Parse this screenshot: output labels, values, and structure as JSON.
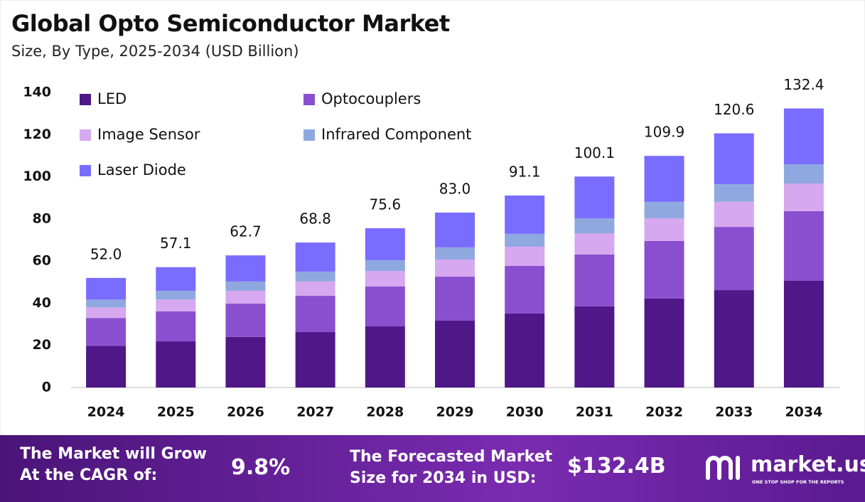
{
  "chart_data": {
    "type": "stacked_bar",
    "title": "Global Opto Semiconductor Market",
    "subtitle": "Size, By Type, 2025-2034 (USD Billion)",
    "categories": [
      "2024",
      "2025",
      "2026",
      "2027",
      "2028",
      "2029",
      "2030",
      "2031",
      "2032",
      "2033",
      "2034"
    ],
    "series": [
      {
        "name": "LED",
        "color": "#4f1787",
        "values": [
          19.8,
          21.9,
          24.0,
          26.3,
          29.0,
          31.7,
          35.1,
          38.5,
          42.2,
          46.2,
          50.6
        ]
      },
      {
        "name": "Optocouplers",
        "color": "#8a4fcf",
        "values": [
          13.2,
          14.2,
          15.8,
          17.2,
          18.9,
          20.9,
          22.6,
          24.6,
          27.3,
          30.0,
          33.1
        ]
      },
      {
        "name": "Image Sensor",
        "color": "#d6a8ef",
        "values": [
          5.0,
          5.7,
          6.1,
          6.8,
          7.4,
          8.1,
          9.1,
          10.1,
          10.8,
          11.9,
          13.1
        ]
      },
      {
        "name": "Infrared Component",
        "color": "#90a8e0",
        "values": [
          3.7,
          4.1,
          4.4,
          4.7,
          5.1,
          5.8,
          6.1,
          7.1,
          7.8,
          8.4,
          9.1
        ]
      },
      {
        "name": "Laser Diode",
        "color": "#7a6cff",
        "values": [
          10.3,
          11.2,
          12.4,
          13.8,
          15.2,
          16.5,
          18.2,
          19.8,
          21.8,
          24.1,
          26.5
        ]
      }
    ],
    "totals": {
      "values": [
        52.0,
        57.1,
        62.7,
        68.8,
        75.6,
        83.0,
        91.1,
        100.1,
        109.9,
        120.6,
        132.4
      ],
      "value_labels": [
        "52.0",
        "57.1",
        "62.7",
        "68.8",
        "75.6",
        "83.0",
        "91.1",
        "100.1",
        "109.9",
        "120.6",
        "132.4"
      ]
    },
    "ylim": [
      0,
      140
    ],
    "yticks": [
      0,
      20,
      40,
      60,
      80,
      100,
      120,
      140
    ],
    "grid": false
  },
  "footer": {
    "cagr_text": "The Market will Grow At the CAGR of:",
    "cagr": "9.8%",
    "forecast_text": "The Forecasted Market Size for 2034 in USD:",
    "forecast": "$132.4B",
    "brand": "market.us",
    "tagline": "ONE STOP SHOP FOR THE REPORTS"
  }
}
